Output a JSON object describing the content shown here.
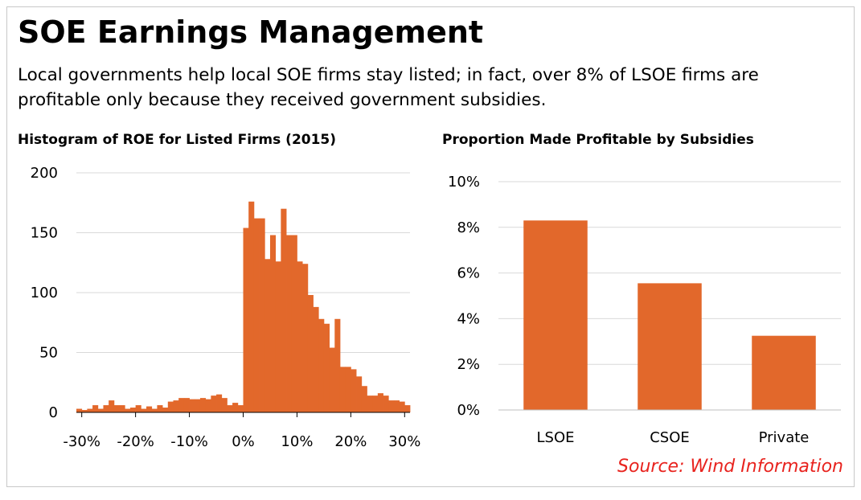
{
  "title": "SOE Earnings Management",
  "subtitle": "Local governments help local SOE firms stay listed; in fact, over 8% of LSOE firms are profitable only because they received government subsidies.",
  "source": "Source: Wind Information",
  "colors": {
    "bar": "#e2682b",
    "grid": "#d9d9d9",
    "axis": "#000000",
    "source": "#e8231e"
  },
  "chart_data": [
    {
      "type": "bar",
      "title": "Histogram of ROE for Listed Firms (2015)",
      "xlabel": "",
      "ylabel": "",
      "x_unit": "ROE (%)",
      "xlim": [
        -31,
        31
      ],
      "ylim": [
        0,
        200
      ],
      "y_ticks": [
        0,
        50,
        100,
        150,
        200
      ],
      "x_ticks": [
        "-30%",
        "-20%",
        "-10%",
        "0%",
        "10%",
        "20%",
        "30%"
      ],
      "x_tick_values": [
        -30,
        -20,
        -10,
        0,
        10,
        20,
        30
      ],
      "bin_width": 1,
      "bin_start": -31,
      "values": [
        3,
        2,
        3,
        6,
        3,
        6,
        10,
        6,
        6,
        3,
        4,
        6,
        3,
        5,
        3,
        6,
        4,
        9,
        10,
        12,
        12,
        11,
        11,
        12,
        11,
        14,
        15,
        12,
        6,
        8,
        6,
        154,
        176,
        162,
        162,
        128,
        148,
        126,
        170,
        148,
        148,
        126,
        124,
        98,
        88,
        78,
        74,
        54,
        78,
        38,
        38,
        36,
        30,
        22,
        14,
        14,
        16,
        14,
        10,
        10,
        9,
        6
      ],
      "grid": true
    },
    {
      "type": "bar",
      "title": "Proportion Made Profitable by Subsidies",
      "xlabel": "",
      "ylabel": "",
      "categories": [
        "LSOE",
        "CSOE",
        "Private"
      ],
      "values": [
        8.3,
        5.55,
        3.25
      ],
      "ylim": [
        0,
        10
      ],
      "y_ticks": [
        "0%",
        "2%",
        "4%",
        "6%",
        "8%",
        "10%"
      ],
      "y_tick_values": [
        0,
        2,
        4,
        6,
        8,
        10
      ],
      "grid": true
    }
  ]
}
